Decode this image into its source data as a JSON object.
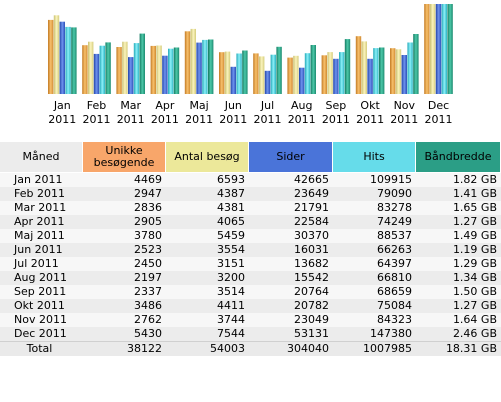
{
  "chart_data": {
    "type": "bar",
    "categories": [
      "Jan\n2011",
      "Feb\n2011",
      "Mar\n2011",
      "Apr\n2011",
      "Maj\n2011",
      "Jun\n2011",
      "Jul\n2011",
      "Aug\n2011",
      "Sep\n2011",
      "Okt\n2011",
      "Nov\n2011",
      "Dec\n2011"
    ],
    "series": [
      {
        "name": "Unikke besøgende",
        "color": "#f5a85a",
        "values": [
          4469,
          2947,
          2836,
          2905,
          3780,
          2523,
          2450,
          2197,
          2337,
          3486,
          2762,
          5430
        ]
      },
      {
        "name": "Antal besøg",
        "color": "#ece59a",
        "values": [
          6593,
          4387,
          4381,
          4065,
          5459,
          3554,
          3151,
          3200,
          3514,
          4411,
          3744,
          7544
        ]
      },
      {
        "name": "Sider",
        "color": "#4a74d9",
        "values": [
          42665,
          23649,
          21791,
          22584,
          30370,
          16031,
          13682,
          15542,
          20764,
          20782,
          23049,
          53131
        ]
      },
      {
        "name": "Hits",
        "color": "#4fd9e6",
        "values": [
          109915,
          79090,
          83278,
          74249,
          88537,
          66263,
          64397,
          66810,
          68659,
          75084,
          84323,
          147380
        ]
      },
      {
        "name": "Båndbredde",
        "color": "#2ea88c",
        "values": [
          1.82,
          1.41,
          1.65,
          1.27,
          1.49,
          1.19,
          1.29,
          1.34,
          1.5,
          1.27,
          1.64,
          2.46
        ]
      }
    ]
  },
  "table": {
    "headers": {
      "month": "Måned",
      "unique": "Unikke besøgende",
      "visits": "Antal besøg",
      "pages": "Sider",
      "hits": "Hits",
      "bandwidth": "Båndbredde"
    },
    "rows": [
      {
        "month": "Jan 2011",
        "unique": "4469",
        "visits": "6593",
        "pages": "42665",
        "hits": "109915",
        "bandwidth": "1.82 GB"
      },
      {
        "month": "Feb 2011",
        "unique": "2947",
        "visits": "4387",
        "pages": "23649",
        "hits": "79090",
        "bandwidth": "1.41 GB"
      },
      {
        "month": "Mar 2011",
        "unique": "2836",
        "visits": "4381",
        "pages": "21791",
        "hits": "83278",
        "bandwidth": "1.65 GB"
      },
      {
        "month": "Apr 2011",
        "unique": "2905",
        "visits": "4065",
        "pages": "22584",
        "hits": "74249",
        "bandwidth": "1.27 GB"
      },
      {
        "month": "Maj 2011",
        "unique": "3780",
        "visits": "5459",
        "pages": "30370",
        "hits": "88537",
        "bandwidth": "1.49 GB"
      },
      {
        "month": "Jun 2011",
        "unique": "2523",
        "visits": "3554",
        "pages": "16031",
        "hits": "66263",
        "bandwidth": "1.19 GB"
      },
      {
        "month": "Jul 2011",
        "unique": "2450",
        "visits": "3151",
        "pages": "13682",
        "hits": "64397",
        "bandwidth": "1.29 GB"
      },
      {
        "month": "Aug 2011",
        "unique": "2197",
        "visits": "3200",
        "pages": "15542",
        "hits": "66810",
        "bandwidth": "1.34 GB"
      },
      {
        "month": "Sep 2011",
        "unique": "2337",
        "visits": "3514",
        "pages": "20764",
        "hits": "68659",
        "bandwidth": "1.50 GB"
      },
      {
        "month": "Okt 2011",
        "unique": "3486",
        "visits": "4411",
        "pages": "20782",
        "hits": "75084",
        "bandwidth": "1.27 GB"
      },
      {
        "month": "Nov 2011",
        "unique": "2762",
        "visits": "3744",
        "pages": "23049",
        "hits": "84323",
        "bandwidth": "1.64 GB"
      },
      {
        "month": "Dec 2011",
        "unique": "5430",
        "visits": "7544",
        "pages": "53131",
        "hits": "147380",
        "bandwidth": "2.46 GB"
      }
    ],
    "total": {
      "month": "Total",
      "unique": "38122",
      "visits": "54003",
      "pages": "304040",
      "hits": "1007985",
      "bandwidth": "18.31 GB"
    }
  },
  "colors": {
    "header_month": "#ececec",
    "header_unique": "#f8a66a",
    "header_visits": "#ece89a",
    "header_pages": "#4a74d9",
    "header_hits": "#66dcea",
    "header_bandwidth": "#2b9e86",
    "row_light": "#f7f7f7",
    "row_dark": "#ececec"
  }
}
